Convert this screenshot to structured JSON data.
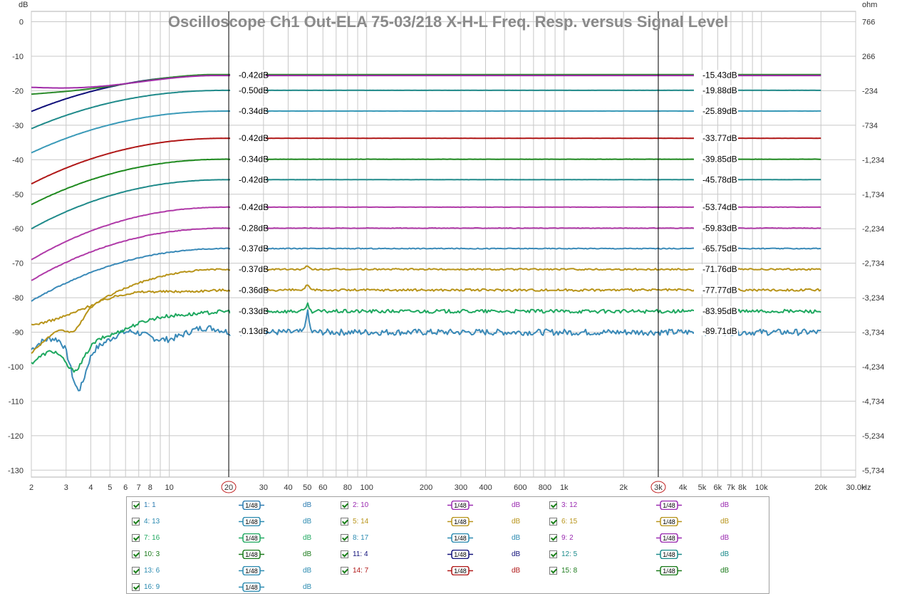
{
  "chart_data": {
    "type": "line",
    "title": "Oscilloscope Ch1 Out-ELA 75-03/218 X-H-L Freq. Resp. versus Signal Level",
    "ylabel_left": "dB",
    "ylabel_right": "ohm",
    "xunit": "Hz",
    "xscale": "log",
    "xlim": [
      2,
      30000
    ],
    "ylim": [
      -132,
      3
    ],
    "grid": true,
    "x_ticks": [
      {
        "v": 2,
        "t": "2"
      },
      {
        "v": 3,
        "t": "3"
      },
      {
        "v": 4,
        "t": "4"
      },
      {
        "v": 5,
        "t": "5"
      },
      {
        "v": 6,
        "t": "6"
      },
      {
        "v": 7,
        "t": "7"
      },
      {
        "v": 8,
        "t": "8"
      },
      {
        "v": 10,
        "t": "10"
      },
      {
        "v": 20,
        "t": "20"
      },
      {
        "v": 30,
        "t": "30"
      },
      {
        "v": 40,
        "t": "40"
      },
      {
        "v": 50,
        "t": "50"
      },
      {
        "v": 60,
        "t": "60"
      },
      {
        "v": 80,
        "t": "80"
      },
      {
        "v": 100,
        "t": "100"
      },
      {
        "v": 200,
        "t": "200"
      },
      {
        "v": 300,
        "t": "300"
      },
      {
        "v": 400,
        "t": "400"
      },
      {
        "v": 600,
        "t": "600"
      },
      {
        "v": 800,
        "t": "800"
      },
      {
        "v": 1000,
        "t": "1k"
      },
      {
        "v": 2000,
        "t": "2k"
      },
      {
        "v": 3000,
        "t": "3k"
      },
      {
        "v": 4000,
        "t": "4k"
      },
      {
        "v": 5000,
        "t": "5k"
      },
      {
        "v": 6000,
        "t": "6k"
      },
      {
        "v": 7000,
        "t": "7k"
      },
      {
        "v": 8000,
        "t": "8k"
      },
      {
        "v": 10000,
        "t": "10k"
      },
      {
        "v": 20000,
        "t": "20k"
      },
      {
        "v": 30000,
        "t": "30.0k"
      }
    ],
    "y_ticks_left": [
      "0",
      "-10",
      "-20",
      "-30",
      "-40",
      "-50",
      "-60",
      "-70",
      "-80",
      "-90",
      "-100",
      "-110",
      "-120",
      "-130"
    ],
    "y_tick_values_left": [
      0,
      -10,
      -20,
      -30,
      -40,
      -50,
      -60,
      -70,
      -80,
      -90,
      -100,
      -110,
      -120,
      -130
    ],
    "y_ticks_right": [
      "766",
      "266",
      "-234",
      "-734",
      "-1,234",
      "-1,734",
      "-2,234",
      "-2,734",
      "-3,234",
      "-3,734",
      "-4,234",
      "-4,734",
      "-5,234",
      "-5,734"
    ],
    "cursors": [
      {
        "x": 20,
        "label": "20"
      },
      {
        "x": 3000,
        "label": "3k"
      }
    ],
    "series": [
      {
        "name": "1: 1",
        "color": "#3a8ab8",
        "start": -95,
        "shape": "noisy_bass",
        "level": -89.71,
        "readout_left": "-0.13dB",
        "readout_right": "-89.71dB",
        "noise": 0.6
      },
      {
        "name": "13: 6",
        "color": "#1fa860",
        "start": -99,
        "shape": "bass_dip",
        "level": -83.95,
        "readout_left": "-0.33dB",
        "readout_right": "-83.95dB",
        "noise": 0.35
      },
      {
        "name": "5: 14",
        "color": "#b8941a",
        "start": -88,
        "shape": "bass_rise",
        "level": -77.77,
        "readout_left": "-0.36dB",
        "readout_right": "-77.77dB",
        "noise": 0.22
      },
      {
        "name": "14: 7",
        "color": "#b8941a",
        "start": -96,
        "shape": "bass_rise2",
        "level": -71.76,
        "readout_left": "-0.37dB",
        "readout_right": "-71.76dB",
        "noise": 0.15
      },
      {
        "name": "8: 17",
        "color": "#3a8ab8",
        "start": -81,
        "shape": "smooth",
        "level": -65.75,
        "readout_left": "-0.37dB",
        "readout_right": "-65.75dB",
        "noise": 0.08
      },
      {
        "name": "9: 2",
        "color": "#b03aa8",
        "start": -75,
        "shape": "smooth",
        "level": -59.83,
        "readout_left": "-0.28dB",
        "readout_right": "-59.83dB",
        "noise": 0.05
      },
      {
        "name": "2: 10",
        "color": "#b03aa8",
        "start": -69,
        "shape": "smooth",
        "level": -53.74,
        "readout_left": "-0.42dB",
        "readout_right": "-53.74dB",
        "noise": 0.03
      },
      {
        "name": "12: 5",
        "color": "#1f8a8a",
        "start": -60,
        "shape": "smooth",
        "level": -45.78,
        "readout_left": "-0.42dB",
        "readout_right": "-45.78dB",
        "noise": 0.02
      },
      {
        "name": "15: 8",
        "color": "#1f8a1f",
        "start": -53,
        "shape": "smooth",
        "level": -39.85,
        "readout_left": "-0.34dB",
        "readout_right": "-39.85dB",
        "noise": 0.02
      },
      {
        "name": "14: 7",
        "color": "#b01818",
        "start": -47,
        "shape": "smooth",
        "level": -33.77,
        "readout_left": "-0.42dB",
        "readout_right": "-33.77dB",
        "noise": 0.01
      },
      {
        "name": "4: 13",
        "color": "#3a9ab8",
        "start": -38,
        "shape": "smooth",
        "level": -25.89,
        "readout_left": "-0.34dB",
        "readout_right": "-25.89dB",
        "noise": 0.01
      },
      {
        "name": "10: 3",
        "color": "#1f8a8a",
        "start": -31,
        "shape": "smooth",
        "level": -19.88,
        "readout_left": "-0.50dB",
        "readout_right": "-19.88dB",
        "noise": 0.01
      },
      {
        "name": "11: 4",
        "color": "#10107a",
        "start": -26,
        "shape": "smooth",
        "level": -15.43,
        "readout_left": "-0.42dB",
        "readout_right": "-15.43dB",
        "noise": 0.0
      },
      {
        "name": "6: 15",
        "color": "#2a8a2a",
        "start": -21,
        "shape": "hump",
        "level": -15.3,
        "readout_left": "",
        "readout_right": "",
        "noise": 0.0
      },
      {
        "name": "3: 12",
        "color": "#a02aa8",
        "start": -19,
        "shape": "hump",
        "level": -15.6,
        "readout_left": "",
        "readout_right": "",
        "noise": 0.0
      }
    ]
  },
  "legend": {
    "unit": "dB",
    "smoothing": "1/48",
    "entries": [
      {
        "label": "1: 1",
        "color": "#2a7ab0"
      },
      {
        "label": "2: 10",
        "color": "#9a2ab0"
      },
      {
        "label": "3: 12",
        "color": "#9a2ab0"
      },
      {
        "label": "4: 13",
        "color": "#2a8ab0"
      },
      {
        "label": "5: 14",
        "color": "#b8941a"
      },
      {
        "label": "6: 15",
        "color": "#b8941a"
      },
      {
        "label": "7: 16",
        "color": "#1fa860"
      },
      {
        "label": "8: 17",
        "color": "#2a8ab0"
      },
      {
        "label": "9: 2",
        "color": "#9a2ab0"
      },
      {
        "label": "10: 3",
        "color": "#1a7a1a"
      },
      {
        "label": "11: 4",
        "color": "#10107a"
      },
      {
        "label": "12: 5",
        "color": "#1a8a8a"
      },
      {
        "label": "13: 6",
        "color": "#2a8ab0"
      },
      {
        "label": "14: 7",
        "color": "#b01818"
      },
      {
        "label": "15: 8",
        "color": "#1a7a1a"
      },
      {
        "label": "16: 9",
        "color": "#2a8ab0"
      }
    ]
  }
}
